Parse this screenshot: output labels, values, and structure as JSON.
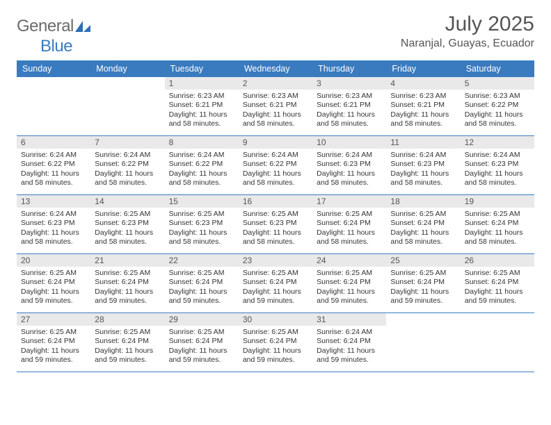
{
  "logo": {
    "word1": "General",
    "word2": "Blue",
    "shape_color": "#2f6fb3",
    "text_dark": "#6b6b6b",
    "text_blue": "#3a7bbf"
  },
  "title": "July 2025",
  "location": "Naranjal, Guayas, Ecuador",
  "colors": {
    "header_bg": "#3a7bbf",
    "header_text": "#ffffff",
    "daynum_bg": "#e9e9e9",
    "daynum_text": "#555555",
    "week_border": "#3a7bbf",
    "body_text": "#333333",
    "page_bg": "#ffffff"
  },
  "fonts": {
    "title_pt": 30,
    "location_pt": 16,
    "weekday_pt": 12.5,
    "daynum_pt": 12,
    "body_pt": 10.5
  },
  "weekdays": [
    "Sunday",
    "Monday",
    "Tuesday",
    "Wednesday",
    "Thursday",
    "Friday",
    "Saturday"
  ],
  "weeks": [
    [
      null,
      null,
      {
        "n": "1",
        "sunrise": "Sunrise: 6:23 AM",
        "sunset": "Sunset: 6:21 PM",
        "daylight1": "Daylight: 11 hours",
        "daylight2": "and 58 minutes."
      },
      {
        "n": "2",
        "sunrise": "Sunrise: 6:23 AM",
        "sunset": "Sunset: 6:21 PM",
        "daylight1": "Daylight: 11 hours",
        "daylight2": "and 58 minutes."
      },
      {
        "n": "3",
        "sunrise": "Sunrise: 6:23 AM",
        "sunset": "Sunset: 6:21 PM",
        "daylight1": "Daylight: 11 hours",
        "daylight2": "and 58 minutes."
      },
      {
        "n": "4",
        "sunrise": "Sunrise: 6:23 AM",
        "sunset": "Sunset: 6:21 PM",
        "daylight1": "Daylight: 11 hours",
        "daylight2": "and 58 minutes."
      },
      {
        "n": "5",
        "sunrise": "Sunrise: 6:23 AM",
        "sunset": "Sunset: 6:22 PM",
        "daylight1": "Daylight: 11 hours",
        "daylight2": "and 58 minutes."
      }
    ],
    [
      {
        "n": "6",
        "sunrise": "Sunrise: 6:24 AM",
        "sunset": "Sunset: 6:22 PM",
        "daylight1": "Daylight: 11 hours",
        "daylight2": "and 58 minutes."
      },
      {
        "n": "7",
        "sunrise": "Sunrise: 6:24 AM",
        "sunset": "Sunset: 6:22 PM",
        "daylight1": "Daylight: 11 hours",
        "daylight2": "and 58 minutes."
      },
      {
        "n": "8",
        "sunrise": "Sunrise: 6:24 AM",
        "sunset": "Sunset: 6:22 PM",
        "daylight1": "Daylight: 11 hours",
        "daylight2": "and 58 minutes."
      },
      {
        "n": "9",
        "sunrise": "Sunrise: 6:24 AM",
        "sunset": "Sunset: 6:22 PM",
        "daylight1": "Daylight: 11 hours",
        "daylight2": "and 58 minutes."
      },
      {
        "n": "10",
        "sunrise": "Sunrise: 6:24 AM",
        "sunset": "Sunset: 6:23 PM",
        "daylight1": "Daylight: 11 hours",
        "daylight2": "and 58 minutes."
      },
      {
        "n": "11",
        "sunrise": "Sunrise: 6:24 AM",
        "sunset": "Sunset: 6:23 PM",
        "daylight1": "Daylight: 11 hours",
        "daylight2": "and 58 minutes."
      },
      {
        "n": "12",
        "sunrise": "Sunrise: 6:24 AM",
        "sunset": "Sunset: 6:23 PM",
        "daylight1": "Daylight: 11 hours",
        "daylight2": "and 58 minutes."
      }
    ],
    [
      {
        "n": "13",
        "sunrise": "Sunrise: 6:24 AM",
        "sunset": "Sunset: 6:23 PM",
        "daylight1": "Daylight: 11 hours",
        "daylight2": "and 58 minutes."
      },
      {
        "n": "14",
        "sunrise": "Sunrise: 6:25 AM",
        "sunset": "Sunset: 6:23 PM",
        "daylight1": "Daylight: 11 hours",
        "daylight2": "and 58 minutes."
      },
      {
        "n": "15",
        "sunrise": "Sunrise: 6:25 AM",
        "sunset": "Sunset: 6:23 PM",
        "daylight1": "Daylight: 11 hours",
        "daylight2": "and 58 minutes."
      },
      {
        "n": "16",
        "sunrise": "Sunrise: 6:25 AM",
        "sunset": "Sunset: 6:23 PM",
        "daylight1": "Daylight: 11 hours",
        "daylight2": "and 58 minutes."
      },
      {
        "n": "17",
        "sunrise": "Sunrise: 6:25 AM",
        "sunset": "Sunset: 6:24 PM",
        "daylight1": "Daylight: 11 hours",
        "daylight2": "and 58 minutes."
      },
      {
        "n": "18",
        "sunrise": "Sunrise: 6:25 AM",
        "sunset": "Sunset: 6:24 PM",
        "daylight1": "Daylight: 11 hours",
        "daylight2": "and 58 minutes."
      },
      {
        "n": "19",
        "sunrise": "Sunrise: 6:25 AM",
        "sunset": "Sunset: 6:24 PM",
        "daylight1": "Daylight: 11 hours",
        "daylight2": "and 58 minutes."
      }
    ],
    [
      {
        "n": "20",
        "sunrise": "Sunrise: 6:25 AM",
        "sunset": "Sunset: 6:24 PM",
        "daylight1": "Daylight: 11 hours",
        "daylight2": "and 59 minutes."
      },
      {
        "n": "21",
        "sunrise": "Sunrise: 6:25 AM",
        "sunset": "Sunset: 6:24 PM",
        "daylight1": "Daylight: 11 hours",
        "daylight2": "and 59 minutes."
      },
      {
        "n": "22",
        "sunrise": "Sunrise: 6:25 AM",
        "sunset": "Sunset: 6:24 PM",
        "daylight1": "Daylight: 11 hours",
        "daylight2": "and 59 minutes."
      },
      {
        "n": "23",
        "sunrise": "Sunrise: 6:25 AM",
        "sunset": "Sunset: 6:24 PM",
        "daylight1": "Daylight: 11 hours",
        "daylight2": "and 59 minutes."
      },
      {
        "n": "24",
        "sunrise": "Sunrise: 6:25 AM",
        "sunset": "Sunset: 6:24 PM",
        "daylight1": "Daylight: 11 hours",
        "daylight2": "and 59 minutes."
      },
      {
        "n": "25",
        "sunrise": "Sunrise: 6:25 AM",
        "sunset": "Sunset: 6:24 PM",
        "daylight1": "Daylight: 11 hours",
        "daylight2": "and 59 minutes."
      },
      {
        "n": "26",
        "sunrise": "Sunrise: 6:25 AM",
        "sunset": "Sunset: 6:24 PM",
        "daylight1": "Daylight: 11 hours",
        "daylight2": "and 59 minutes."
      }
    ],
    [
      {
        "n": "27",
        "sunrise": "Sunrise: 6:25 AM",
        "sunset": "Sunset: 6:24 PM",
        "daylight1": "Daylight: 11 hours",
        "daylight2": "and 59 minutes."
      },
      {
        "n": "28",
        "sunrise": "Sunrise: 6:25 AM",
        "sunset": "Sunset: 6:24 PM",
        "daylight1": "Daylight: 11 hours",
        "daylight2": "and 59 minutes."
      },
      {
        "n": "29",
        "sunrise": "Sunrise: 6:25 AM",
        "sunset": "Sunset: 6:24 PM",
        "daylight1": "Daylight: 11 hours",
        "daylight2": "and 59 minutes."
      },
      {
        "n": "30",
        "sunrise": "Sunrise: 6:25 AM",
        "sunset": "Sunset: 6:24 PM",
        "daylight1": "Daylight: 11 hours",
        "daylight2": "and 59 minutes."
      },
      {
        "n": "31",
        "sunrise": "Sunrise: 6:24 AM",
        "sunset": "Sunset: 6:24 PM",
        "daylight1": "Daylight: 11 hours",
        "daylight2": "and 59 minutes."
      },
      null,
      null
    ]
  ]
}
